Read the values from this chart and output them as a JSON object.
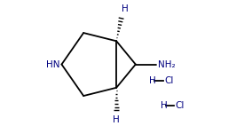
{
  "bg_color": "#ffffff",
  "line_color": "#000000",
  "text_color": "#000080",
  "nh_label": "HN",
  "nh2_label": "NH₂",
  "h_top_label": "H",
  "h_bot_label": "H",
  "hcl1_h": "H",
  "hcl1_cl": "Cl",
  "hcl2_h": "H",
  "hcl2_cl": "Cl",
  "figsize": [
    2.84,
    1.42
  ],
  "dpi": 100,
  "n_dashes": 7
}
